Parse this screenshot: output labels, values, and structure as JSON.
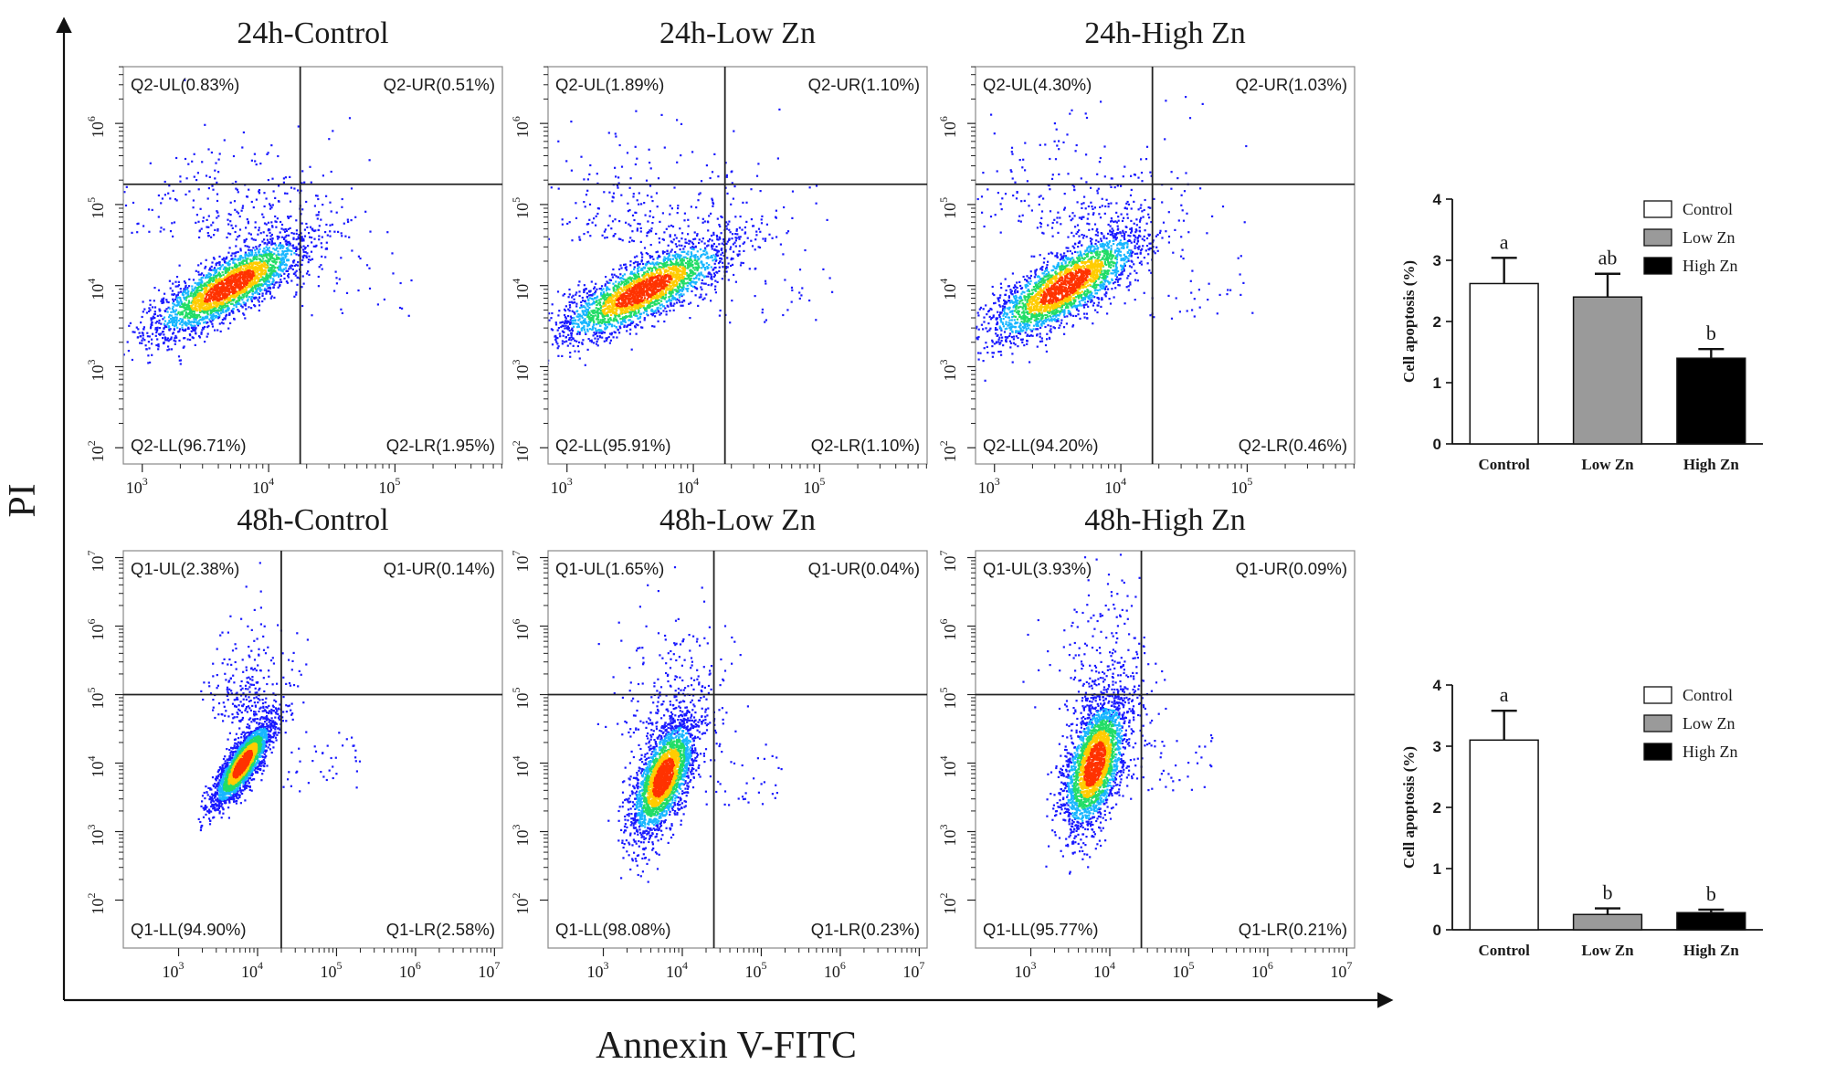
{
  "axes": {
    "ylabel": "PI",
    "xlabel": "Annexin V-FITC"
  },
  "colors": {
    "dot": "#1a1aff",
    "density_low": "#18b6ff",
    "density_mid": "#22dd66",
    "density_high": "#ffcc00",
    "density_peak": "#ff3300",
    "control_bar": "#ffffff",
    "low_zn_bar": "#9a9a9a",
    "high_zn_bar": "#000000"
  },
  "chart_data": [
    {
      "type": "scatter",
      "title": "24h-Control",
      "x_log_range": [
        2.85,
        5.85
      ],
      "y_log_range": [
        1.8,
        6.7
      ],
      "x_ticks": [
        3,
        4,
        5
      ],
      "y_ticks": [
        2,
        3,
        4,
        5,
        6
      ],
      "x_gate": 4.25,
      "y_gate": 5.25,
      "population": {
        "center": [
          3.68,
          4.0
        ],
        "spread": [
          0.3,
          0.3
        ],
        "corr": 0.8
      },
      "quadrants": {
        "UL": "Q2-UL(0.83%)",
        "UR": "Q2-UR(0.51%)",
        "LL": "Q2-LL(96.71%)",
        "LR": "Q2-LR(1.95%)"
      }
    },
    {
      "type": "scatter",
      "title": "24h-Low Zn",
      "x_log_range": [
        2.85,
        5.85
      ],
      "y_log_range": [
        1.8,
        6.7
      ],
      "x_ticks": [
        3,
        4,
        5
      ],
      "y_ticks": [
        2,
        3,
        4,
        5,
        6
      ],
      "x_gate": 4.25,
      "y_gate": 5.25,
      "population": {
        "center": [
          3.6,
          3.95
        ],
        "spread": [
          0.33,
          0.3
        ],
        "corr": 0.78
      },
      "quadrants": {
        "UL": "Q2-UL(1.89%)",
        "UR": "Q2-UR(1.10%)",
        "LL": "Q2-LL(95.91%)",
        "LR": "Q2-LR(1.10%)"
      }
    },
    {
      "type": "scatter",
      "title": "24h-High Zn",
      "x_log_range": [
        2.85,
        5.85
      ],
      "y_log_range": [
        1.8,
        6.7
      ],
      "x_ticks": [
        3,
        4,
        5
      ],
      "y_ticks": [
        2,
        3,
        4,
        5,
        6
      ],
      "x_gate": 4.25,
      "y_gate": 5.25,
      "population": {
        "center": [
          3.55,
          4.0
        ],
        "spread": [
          0.3,
          0.33
        ],
        "corr": 0.78
      },
      "quadrants": {
        "UL": "Q2-UL(4.30%)",
        "UR": "Q2-UR(1.03%)",
        "LL": "Q2-LL(94.20%)",
        "LR": "Q2-LR(0.46%)"
      }
    },
    {
      "type": "scatter",
      "title": "48h-Control",
      "x_log_range": [
        2.3,
        7.1
      ],
      "y_log_range": [
        1.3,
        7.1
      ],
      "x_ticks": [
        3,
        4,
        5,
        6,
        7
      ],
      "y_ticks": [
        2,
        3,
        4,
        5,
        6,
        7
      ],
      "x_gate": 4.3,
      "y_gate": 5.0,
      "population": {
        "center": [
          3.8,
          4.0
        ],
        "spread": [
          0.18,
          0.3
        ],
        "corr": 0.82
      },
      "quadrants": {
        "UL": "Q1-UL(2.38%)",
        "UR": "Q1-UR(0.14%)",
        "LL": "Q1-LL(94.90%)",
        "LR": "Q1-LR(2.58%)"
      }
    },
    {
      "type": "scatter",
      "title": "48h-Low Zn",
      "x_log_range": [
        2.3,
        7.1
      ],
      "y_log_range": [
        1.3,
        7.1
      ],
      "x_ticks": [
        3,
        4,
        5,
        6,
        7
      ],
      "y_ticks": [
        2,
        3,
        4,
        5,
        6,
        7
      ],
      "x_gate": 4.4,
      "y_gate": 5.0,
      "population": {
        "center": [
          3.75,
          3.8
        ],
        "spread": [
          0.2,
          0.42
        ],
        "corr": 0.6
      },
      "quadrants": {
        "UL": "Q1-UL(1.65%)",
        "UR": "Q1-UR(0.04%)",
        "LL": "Q1-LL(98.08%)",
        "LR": "Q1-LR(0.23%)"
      }
    },
    {
      "type": "scatter",
      "title": "48h-High Zn",
      "x_log_range": [
        2.3,
        7.1
      ],
      "y_log_range": [
        1.3,
        7.1
      ],
      "x_ticks": [
        3,
        4,
        5,
        6,
        7
      ],
      "y_ticks": [
        2,
        3,
        4,
        5,
        6,
        7
      ],
      "x_gate": 4.4,
      "y_gate": 5.0,
      "population": {
        "center": [
          3.8,
          4.0
        ],
        "spread": [
          0.2,
          0.48
        ],
        "corr": 0.5
      },
      "quadrants": {
        "UL": "Q1-UL(3.93%)",
        "UR": "Q1-UR(0.09%)",
        "LL": "Q1-LL(95.77%)",
        "LR": "Q1-LR(0.21%)"
      }
    },
    {
      "type": "bar",
      "ylabel": "Cell apoptosis (%)",
      "ylim": [
        0,
        4
      ],
      "y_ticks": [
        0,
        1,
        2,
        3,
        4
      ],
      "categories": [
        "Control",
        "Low Zn",
        "High Zn"
      ],
      "values": [
        2.62,
        2.4,
        1.4
      ],
      "errors": [
        0.42,
        0.38,
        0.15
      ],
      "letters": [
        "a",
        "ab",
        "b"
      ],
      "legend": [
        "Control",
        "Low Zn",
        "High Zn"
      ],
      "legend_position": "top-right"
    },
    {
      "type": "bar",
      "ylabel": "Cell apoptosis (%)",
      "ylim": [
        0,
        4
      ],
      "y_ticks": [
        0,
        1,
        2,
        3,
        4
      ],
      "categories": [
        "Control",
        "Low Zn",
        "High Zn"
      ],
      "values": [
        3.1,
        0.25,
        0.28
      ],
      "errors": [
        0.48,
        0.1,
        0.05
      ],
      "letters": [
        "a",
        "b",
        "b"
      ],
      "legend": [
        "Control",
        "Low Zn",
        "High Zn"
      ],
      "legend_position": "top-right"
    }
  ]
}
